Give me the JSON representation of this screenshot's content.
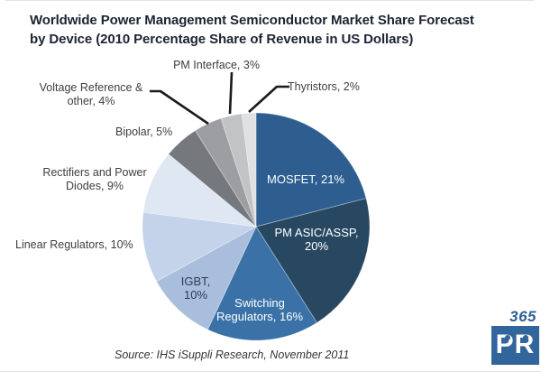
{
  "title": {
    "line1": "Worldwide Power Management Semiconductor Market Share Forecast",
    "line2": "by Device (2010 Percentage Share of Revenue in US Dollars)"
  },
  "source_note": "Source: IHS iSuppli Research, November 2011",
  "watermark": {
    "top_text": "365",
    "box_text": "PR",
    "brand_color": "#31659c"
  },
  "callouts": {
    "pm_interface": "PM Interface, 3%",
    "thyristors": "Thyristors, 2%",
    "voltage_ref_line1": "Voltage Reference &",
    "voltage_ref_line2": "other, 4%",
    "bipolar": "Bipolar, 5%",
    "rectifiers_line1": "Rectifiers and Power",
    "rectifiers_line2": "Diodes, 9%",
    "linear": "Linear Regulators, 10%",
    "mosfet": "MOSFET, 21%",
    "pm_asic_line1": "PM ASIC/ASSP,",
    "pm_asic_line2": "20%",
    "switching_line1": "Switching",
    "switching_line2": "Regulators, 16%",
    "igbt_line1": "IGBT,",
    "igbt_line2": "10%"
  },
  "chart_data": {
    "type": "pie",
    "title": "Worldwide Power Management Semiconductor Market Share Forecast by Device (2010 Percentage Share of Revenue in US Dollars)",
    "value_unit": "percent share of revenue",
    "start_angle_deg": 0,
    "direction": "clockwise",
    "legend_position": "labels-on-chart",
    "slices": [
      {
        "label": "MOSFET",
        "value": 21,
        "color": "#2d5e8f",
        "label_placement": "inside",
        "text_color": "#ffffff"
      },
      {
        "label": "PM ASIC/ASSP",
        "value": 20,
        "color": "#284862",
        "label_placement": "inside",
        "text_color": "#ffffff"
      },
      {
        "label": "Switching Regulators",
        "value": 16,
        "color": "#3a72a8",
        "label_placement": "inside",
        "text_color": "#ffffff"
      },
      {
        "label": "IGBT",
        "value": 10,
        "color": "#a9bedd",
        "label_placement": "inside",
        "text_color": "#2e3b50"
      },
      {
        "label": "Linear Regulators",
        "value": 10,
        "color": "#c4d3e9",
        "label_placement": "outside",
        "text_color": "#3e3e3e"
      },
      {
        "label": "Rectifiers and Power Diodes",
        "value": 9,
        "color": "#dfe7f3",
        "label_placement": "outside",
        "text_color": "#3e3e3e"
      },
      {
        "label": "Bipolar",
        "value": 5,
        "color": "#75787c",
        "label_placement": "outside",
        "text_color": "#3e3e3e"
      },
      {
        "label": "Voltage Reference & other",
        "value": 4,
        "color": "#9c9ea1",
        "label_placement": "outside",
        "text_color": "#3e3e3e"
      },
      {
        "label": "PM Interface",
        "value": 3,
        "color": "#c1c3c5",
        "label_placement": "outside",
        "text_color": "#3e3e3e"
      },
      {
        "label": "Thyristors",
        "value": 2,
        "color": "#dfe1e3",
        "label_placement": "outside",
        "text_color": "#3e3e3e"
      }
    ]
  }
}
